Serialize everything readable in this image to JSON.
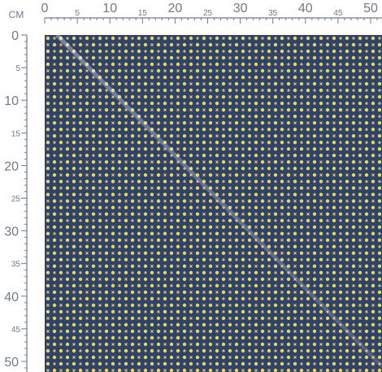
{
  "ruler_unit": "CM",
  "top_ruler": {
    "labels": [
      0,
      5,
      10,
      15,
      20,
      25,
      30,
      35,
      40,
      45,
      50
    ]
  },
  "left_ruler": {
    "labels": [
      0,
      5,
      10,
      15,
      20,
      25,
      30,
      35,
      40,
      45,
      50
    ]
  }
}
